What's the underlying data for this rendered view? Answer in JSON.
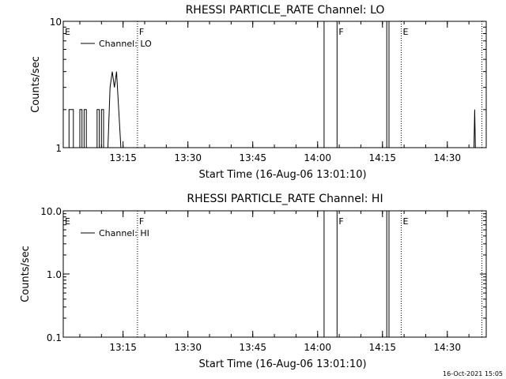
{
  "footer_timestamp": "16-Oct-2021 15:05",
  "chart_data": [
    {
      "type": "line",
      "title": "RHESSI PARTICLE_RATE Channel: LO",
      "xlabel": "Start Time (16-Aug-06 13:01:10)",
      "ylabel": "Counts/sec",
      "yscale": "log",
      "xlim": [
        "13:01:10",
        "14:39:00"
      ],
      "ylim": [
        1,
        10
      ],
      "x_ticks": [
        "13:15",
        "13:30",
        "13:45",
        "14:00",
        "14:15",
        "14:30"
      ],
      "y_ticks": [
        "1",
        "10"
      ],
      "legend": {
        "label": "Channel: LO",
        "position": "top-left"
      },
      "series": [
        {
          "name": "Channel: LO",
          "points": [
            [
              "13:02:30",
              1
            ],
            [
              "13:02:30",
              2
            ],
            [
              "13:03:30",
              2
            ],
            [
              "13:03:30",
              1
            ],
            [
              "13:05:00",
              1
            ],
            [
              "13:05:00",
              2
            ],
            [
              "13:05:30",
              2
            ],
            [
              "13:05:30",
              1
            ],
            [
              "13:06:00",
              1
            ],
            [
              "13:06:00",
              2
            ],
            [
              "13:06:30",
              2
            ],
            [
              "13:06:30",
              1
            ],
            [
              "13:09:00",
              1
            ],
            [
              "13:09:00",
              2
            ],
            [
              "13:09:30",
              2
            ],
            [
              "13:09:30",
              1
            ],
            [
              "13:10:00",
              1
            ],
            [
              "13:10:00",
              2
            ],
            [
              "13:10:30",
              2
            ],
            [
              "13:10:30",
              1
            ],
            [
              "13:11:30",
              1
            ],
            [
              "13:12:00",
              3
            ],
            [
              "13:12:30",
              4
            ],
            [
              "13:13:00",
              3
            ],
            [
              "13:13:30",
              4
            ],
            [
              "13:14:30",
              1
            ],
            [
              "14:01:30",
              1
            ],
            [
              "14:01:30",
              10
            ],
            [
              "14:04:30",
              10
            ],
            [
              "14:04:30",
              1
            ],
            [
              "14:16:00",
              1
            ],
            [
              "14:16:00",
              10
            ],
            [
              "14:16:30",
              10
            ],
            [
              "14:16:30",
              1
            ],
            [
              "14:36:10",
              1
            ],
            [
              "14:36:20",
              2
            ],
            [
              "14:36:30",
              1
            ]
          ]
        }
      ],
      "flags": [
        {
          "label": "E",
          "time": "13:01:10"
        },
        {
          "label": "F",
          "time": "13:18:20"
        },
        {
          "label": "F",
          "time": "14:04:30"
        },
        {
          "label": "E",
          "time": "14:19:20"
        }
      ],
      "dotted_markers": [
        "13:18:20",
        "14:19:20",
        "14:38:00"
      ]
    },
    {
      "type": "line",
      "title": "RHESSI PARTICLE_RATE Channel: HI",
      "xlabel": "Start Time (16-Aug-06 13:01:10)",
      "ylabel": "Counts/sec",
      "yscale": "log",
      "xlim": [
        "13:01:10",
        "14:39:00"
      ],
      "ylim": [
        0.1,
        10
      ],
      "x_ticks": [
        "13:15",
        "13:30",
        "13:45",
        "14:00",
        "14:15",
        "14:30"
      ],
      "y_ticks": [
        "0.1",
        "1.0",
        "10.0"
      ],
      "legend": {
        "label": "Channel: HI",
        "position": "top-left"
      },
      "series": [
        {
          "name": "Channel: HI",
          "points": [
            [
              "14:01:30",
              0.1
            ],
            [
              "14:01:30",
              10
            ],
            [
              "14:04:30",
              10
            ],
            [
              "14:04:30",
              0.1
            ],
            [
              "14:16:00",
              0.1
            ],
            [
              "14:16:00",
              10
            ],
            [
              "14:16:30",
              10
            ],
            [
              "14:16:30",
              0.1
            ]
          ]
        }
      ],
      "flags": [
        {
          "label": "E",
          "time": "13:01:10"
        },
        {
          "label": "F",
          "time": "13:18:20"
        },
        {
          "label": "F",
          "time": "14:04:30"
        },
        {
          "label": "E",
          "time": "14:19:20"
        }
      ],
      "dotted_markers": [
        "13:18:20",
        "14:19:20",
        "14:38:00"
      ]
    }
  ]
}
